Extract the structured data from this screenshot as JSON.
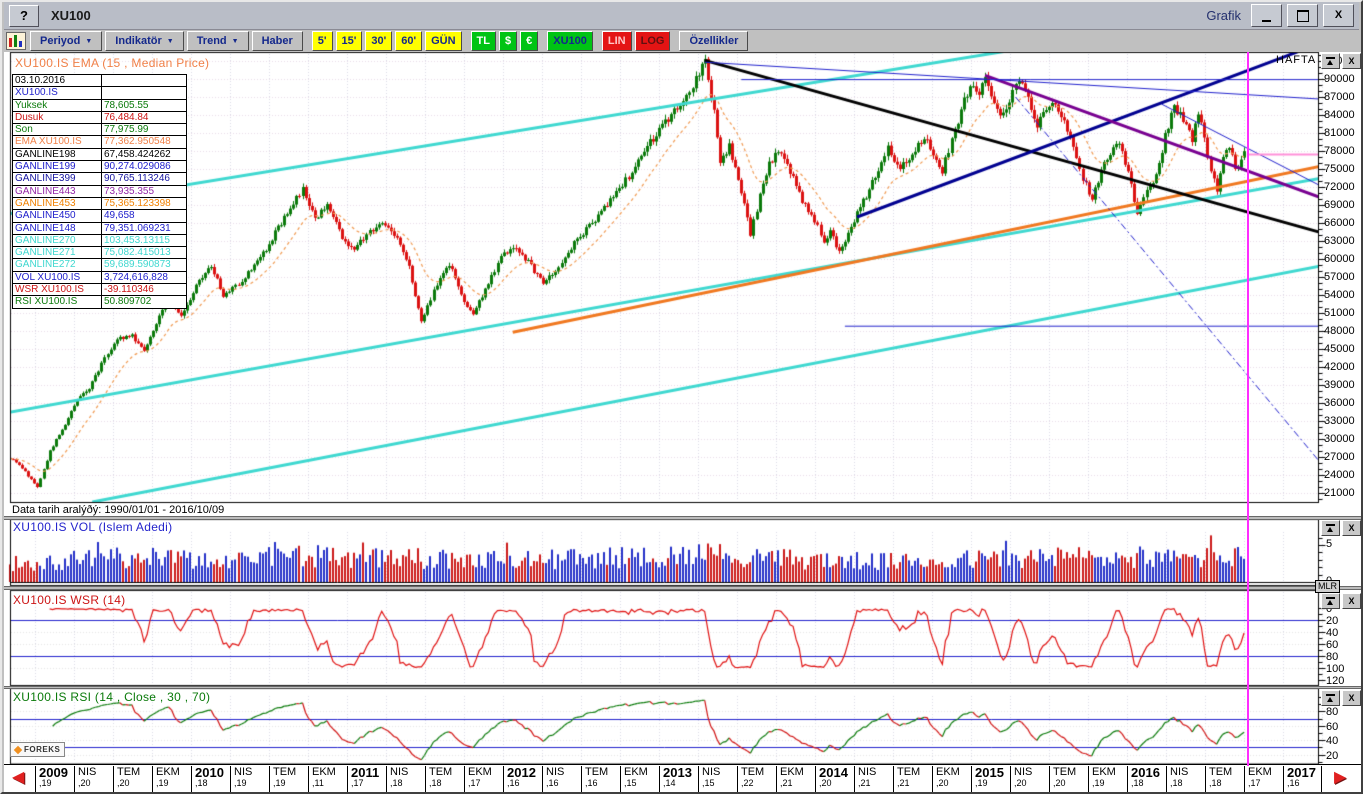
{
  "window": {
    "help": "?",
    "title": "XU100",
    "right_label": "Grafik"
  },
  "icons": {
    "dropdown_arrow": "▼",
    "scroll_left": "◀",
    "scroll_right": "▶",
    "close_glyph": "X"
  },
  "toolbar": {
    "buttons": [
      {
        "id": "periyod",
        "label": "Periyod",
        "arrow": true,
        "style": "gray"
      },
      {
        "id": "indikator",
        "label": "Indikatör",
        "arrow": true,
        "style": "gray"
      },
      {
        "id": "trend",
        "label": "Trend",
        "arrow": true,
        "style": "gray"
      },
      {
        "id": "haber",
        "label": "Haber",
        "arrow": false,
        "style": "gray"
      },
      {
        "id": "5m",
        "label": "5'",
        "style": "yellow"
      },
      {
        "id": "15m",
        "label": "15'",
        "style": "yellow"
      },
      {
        "id": "30m",
        "label": "30'",
        "style": "yellow"
      },
      {
        "id": "60m",
        "label": "60'",
        "style": "yellow"
      },
      {
        "id": "gun",
        "label": "GÜN",
        "style": "yellow"
      },
      {
        "id": "tl",
        "label": "TL",
        "style": "green-white"
      },
      {
        "id": "usd",
        "label": "$",
        "style": "green-white"
      },
      {
        "id": "eur",
        "label": "€",
        "style": "green-white"
      },
      {
        "id": "xu100",
        "label": "XU100",
        "style": "green-navy"
      },
      {
        "id": "lin",
        "label": "LIN",
        "style": "red-light"
      },
      {
        "id": "log",
        "label": "LOG",
        "style": "red-dark"
      },
      {
        "id": "ozellikler",
        "label": "Özellikler",
        "style": "gray"
      }
    ]
  },
  "legend": {
    "title": "XU100.IS EMA (15 , Median Price)",
    "rows": [
      {
        "label": "03.10.2016",
        "value": "",
        "color": "#000000"
      },
      {
        "label": "XU100.IS",
        "value": "",
        "color": "#2020cc"
      },
      {
        "label": "Yuksek",
        "value": "78,605.55",
        "color": "#0a7a0a"
      },
      {
        "label": "Dusuk",
        "value": "76,484.84",
        "color": "#cc1414"
      },
      {
        "label": "Son",
        "value": "77,975.99",
        "color": "#0a7a0a"
      },
      {
        "label": "EMA XU100.IS",
        "value": "77,362.950548",
        "color": "#f08048"
      },
      {
        "label": "GANLINE198",
        "value": "67,458.424262",
        "color": "#000000"
      },
      {
        "label": "GANLINE199",
        "value": "90,274.029086",
        "color": "#2020cc"
      },
      {
        "label": "GANLINE399",
        "value": "90,765.113246",
        "color": "#1414a0"
      },
      {
        "label": "GANLINE443",
        "value": "73,935.355",
        "color": "#9428a8"
      },
      {
        "label": "GANLINE453",
        "value": "75,365.123398",
        "color": "#f08000"
      },
      {
        "label": "GANLINE450",
        "value": "49,658",
        "color": "#2020cc"
      },
      {
        "label": "GANLINE148",
        "value": "79,351.069231",
        "color": "#2020cc"
      },
      {
        "label": "GANLINE270",
        "value": "103,453.13115",
        "color": "#40d8d0"
      },
      {
        "label": "GANLINE271",
        "value": "75,082.415013",
        "color": "#40d8d0"
      },
      {
        "label": "GANLINE272",
        "value": "59,689.590873",
        "color": "#40d8d0"
      },
      {
        "label": "VOL XU100.IS",
        "value": "3,724,616,828",
        "color": "#2020cc"
      },
      {
        "label": "WSR XU100.IS",
        "value": "-39.110346",
        "color": "#cc1414"
      },
      {
        "label": "RSI XU100.IS",
        "value": "50.809702",
        "color": "#0a7a0a"
      }
    ]
  },
  "main": {
    "mode": "HAFTA",
    "footer": "Data tarih aralýðý: 1990/01/01 - 2016/10/09",
    "y_ticks": [
      93000,
      90000,
      87000,
      84000,
      81000,
      78000,
      75000,
      72000,
      69000,
      66000,
      63000,
      60000,
      57000,
      54000,
      51000,
      48000,
      45000,
      42000,
      39000,
      36000,
      33000,
      30000,
      27000,
      24000,
      21000
    ]
  },
  "vol": {
    "title": "XU100.IS VOL (Islem Adedi)",
    "y_ticks": [
      5,
      0
    ],
    "unit": "MLR"
  },
  "wsr": {
    "title": "XU100.IS WSR (14)",
    "y_ticks": [
      0,
      20,
      40,
      60,
      80,
      100,
      120
    ],
    "ref_lines": [
      20,
      80
    ]
  },
  "rsi": {
    "title": "XU100.IS RSI (14 , Close , 30 , 70)",
    "y_ticks": [
      80,
      60,
      40,
      20
    ],
    "ref_lines": [
      30,
      70
    ]
  },
  "logo": "FOREKS",
  "x_axis": [
    {
      "t": "2009",
      "s": "19",
      "year": true
    },
    {
      "t": "NIS",
      "s": "20"
    },
    {
      "t": "TEM",
      "s": "20"
    },
    {
      "t": "EKM",
      "s": "19"
    },
    {
      "t": "2010",
      "s": "18",
      "year": true
    },
    {
      "t": "NIS",
      "s": "19"
    },
    {
      "t": "TEM",
      "s": "19"
    },
    {
      "t": "EKM",
      "s": "11"
    },
    {
      "t": "2011",
      "s": "17",
      "year": true
    },
    {
      "t": "NIS",
      "s": "18"
    },
    {
      "t": "TEM",
      "s": "18"
    },
    {
      "t": "EKM",
      "s": "17"
    },
    {
      "t": "2012",
      "s": "16",
      "year": true
    },
    {
      "t": "NIS",
      "s": "16"
    },
    {
      "t": "TEM",
      "s": "16"
    },
    {
      "t": "EKM",
      "s": "15"
    },
    {
      "t": "2013",
      "s": "14",
      "year": true
    },
    {
      "t": "NIS",
      "s": "15"
    },
    {
      "t": "TEM",
      "s": "22"
    },
    {
      "t": "EKM",
      "s": "21"
    },
    {
      "t": "2014",
      "s": "20",
      "year": true
    },
    {
      "t": "NIS",
      "s": "21"
    },
    {
      "t": "TEM",
      "s": "21"
    },
    {
      "t": "EKM",
      "s": "20"
    },
    {
      "t": "2015",
      "s": "19",
      "year": true
    },
    {
      "t": "NIS",
      "s": "20"
    },
    {
      "t": "TEM",
      "s": "20"
    },
    {
      "t": "EKM",
      "s": "19"
    },
    {
      "t": "2016",
      "s": "18",
      "year": true
    },
    {
      "t": "NIS",
      "s": "18"
    },
    {
      "t": "TEM",
      "s": "18"
    },
    {
      "t": "EKM",
      "s": "17"
    },
    {
      "t": "2017",
      "s": "16",
      "year": true
    }
  ],
  "chart_data": {
    "type": "candlestick",
    "symbol": "XU100.IS",
    "timeframe": "HAFTA (weekly)",
    "date_range": "1990/01/01 - 2016/10/09",
    "last_bar": {
      "date": "03.10.2016",
      "high": 78605.55,
      "low": 76484.84,
      "close": 77975.99
    },
    "ema": {
      "period": 15,
      "source": "Median Price",
      "last": 77362.950548
    },
    "volume_last": 3724616828,
    "wsr_last": -39.110346,
    "rsi_last": 50.809702,
    "ylim": [
      19500,
      94500
    ],
    "y_step": 3000,
    "weeks_total": 406,
    "cursor_week": 406,
    "price_anchors": [
      [
        0,
        26800
      ],
      [
        4,
        25200
      ],
      [
        9,
        21900
      ],
      [
        13,
        28000
      ],
      [
        18,
        32500
      ],
      [
        22,
        36500
      ],
      [
        26,
        38500
      ],
      [
        31,
        43500
      ],
      [
        35,
        46800
      ],
      [
        40,
        47200
      ],
      [
        44,
        44900
      ],
      [
        48,
        49500
      ],
      [
        52,
        54300
      ],
      [
        56,
        50200
      ],
      [
        61,
        55500
      ],
      [
        66,
        59000
      ],
      [
        70,
        53800
      ],
      [
        75,
        56000
      ],
      [
        80,
        58800
      ],
      [
        85,
        62500
      ],
      [
        90,
        67000
      ],
      [
        96,
        71500
      ],
      [
        100,
        66800
      ],
      [
        104,
        68900
      ],
      [
        109,
        63500
      ],
      [
        113,
        61800
      ],
      [
        118,
        64500
      ],
      [
        122,
        66300
      ],
      [
        127,
        63500
      ],
      [
        131,
        58500
      ],
      [
        135,
        49800
      ],
      [
        139,
        54500
      ],
      [
        144,
        59200
      ],
      [
        148,
        53800
      ],
      [
        152,
        50800
      ],
      [
        157,
        56000
      ],
      [
        161,
        60500
      ],
      [
        165,
        62200
      ],
      [
        170,
        59500
      ],
      [
        175,
        55800
      ],
      [
        180,
        58800
      ],
      [
        185,
        62500
      ],
      [
        190,
        65500
      ],
      [
        195,
        68500
      ],
      [
        200,
        71800
      ],
      [
        204,
        74500
      ],
      [
        208,
        78200
      ],
      [
        212,
        80500
      ],
      [
        216,
        83500
      ],
      [
        220,
        85800
      ],
      [
        224,
        88800
      ],
      [
        228,
        93000
      ],
      [
        231,
        84500
      ],
      [
        233,
        76500
      ],
      [
        236,
        78800
      ],
      [
        239,
        73500
      ],
      [
        243,
        64200
      ],
      [
        246,
        70500
      ],
      [
        249,
        75800
      ],
      [
        252,
        77800
      ],
      [
        256,
        74500
      ],
      [
        260,
        69800
      ],
      [
        264,
        66500
      ],
      [
        267,
        62800
      ],
      [
        269,
        64800
      ],
      [
        272,
        61200
      ],
      [
        276,
        65500
      ],
      [
        280,
        69500
      ],
      [
        284,
        73800
      ],
      [
        288,
        78800
      ],
      [
        292,
        74800
      ],
      [
        296,
        77800
      ],
      [
        300,
        80200
      ],
      [
        303,
        77500
      ],
      [
        306,
        74800
      ],
      [
        310,
        81500
      ],
      [
        313,
        86500
      ],
      [
        316,
        89200
      ],
      [
        318,
        87500
      ],
      [
        320,
        90500
      ],
      [
        322,
        87000
      ],
      [
        325,
        83500
      ],
      [
        328,
        86500
      ],
      [
        331,
        89800
      ],
      [
        334,
        86500
      ],
      [
        337,
        82500
      ],
      [
        340,
        84800
      ],
      [
        343,
        86200
      ],
      [
        346,
        82800
      ],
      [
        349,
        78500
      ],
      [
        352,
        73500
      ],
      [
        355,
        70200
      ],
      [
        358,
        74800
      ],
      [
        361,
        77800
      ],
      [
        364,
        79500
      ],
      [
        367,
        74500
      ],
      [
        370,
        67800
      ],
      [
        373,
        71500
      ],
      [
        376,
        73800
      ],
      [
        379,
        80500
      ],
      [
        382,
        85500
      ],
      [
        385,
        83000
      ],
      [
        388,
        80000
      ],
      [
        390,
        84500
      ],
      [
        392,
        80500
      ],
      [
        394,
        74500
      ],
      [
        396,
        71500
      ],
      [
        398,
        77500
      ],
      [
        400,
        78800
      ],
      [
        402,
        74800
      ],
      [
        404,
        76800
      ],
      [
        405,
        77976
      ]
    ],
    "volume_anchors": [
      [
        0,
        2.4
      ],
      [
        20,
        3.0
      ],
      [
        40,
        3.3
      ],
      [
        70,
        3.1
      ],
      [
        100,
        3.5
      ],
      [
        130,
        3.2
      ],
      [
        160,
        2.9
      ],
      [
        200,
        3.3
      ],
      [
        230,
        3.7
      ],
      [
        260,
        3.0
      ],
      [
        290,
        2.7
      ],
      [
        320,
        3.1
      ],
      [
        350,
        3.4
      ],
      [
        380,
        3.1
      ],
      [
        405,
        3.4
      ]
    ],
    "trendlines": [
      {
        "name": "GANLINE270",
        "color": "#3fd8d0",
        "width": 3,
        "p": [
          [
            -3,
            67300
          ],
          [
            330,
            94900
          ]
        ]
      },
      {
        "name": "GANLINE271",
        "color": "#3fd8d0",
        "width": 3,
        "p": [
          [
            -3,
            34200
          ],
          [
            445,
            74800
          ]
        ]
      },
      {
        "name": "GANLINE272",
        "color": "#3fd8d0",
        "width": 3,
        "p": [
          [
            27,
            19500
          ],
          [
            445,
            60300
          ]
        ]
      },
      {
        "name": "GANLINE453",
        "color": "#f07820",
        "width": 3,
        "p": [
          [
            165,
            47800
          ],
          [
            445,
            77000
          ]
        ]
      },
      {
        "name": "GANLINE198",
        "color": "#000000",
        "width": 3,
        "p": [
          [
            228,
            93100
          ],
          [
            445,
            62300
          ]
        ]
      },
      {
        "name": "GANLINE399",
        "color": "#000090",
        "width": 3,
        "p": [
          [
            278,
            67000
          ],
          [
            424,
            94800
          ]
        ]
      },
      {
        "name": "GANLINE443",
        "color": "#780090",
        "width": 3,
        "p": [
          [
            320,
            90600
          ],
          [
            445,
            67500
          ]
        ]
      },
      {
        "name": "resistance-2013",
        "color": "#2020cc",
        "width": 1,
        "p": [
          [
            228,
            92800
          ],
          [
            445,
            86200
          ]
        ]
      },
      {
        "name": "GANLINE199",
        "color": "#2020cc",
        "width": 1,
        "p": [
          [
            240,
            89900
          ],
          [
            445,
            89900
          ]
        ]
      },
      {
        "name": "GANLINE148",
        "color": "#2020cc",
        "width": 1,
        "p": [
          [
            378,
            85800
          ],
          [
            445,
            68300
          ]
        ]
      },
      {
        "name": "GANLINE450",
        "color": "#2020cc",
        "width": 1,
        "p": [
          [
            274,
            48800
          ],
          [
            445,
            48800
          ]
        ]
      },
      {
        "name": "projection-dashdot",
        "color": "#2020cc",
        "width": 1,
        "dash": [
          7,
          3,
          2,
          3
        ],
        "p": [
          [
            330,
            87000
          ],
          [
            440,
            20000
          ]
        ]
      },
      {
        "name": "target-78k",
        "color": "#ff8fd8",
        "width": 2,
        "p": [
          [
            406,
            77400
          ],
          [
            445,
            77400
          ]
        ]
      }
    ]
  }
}
